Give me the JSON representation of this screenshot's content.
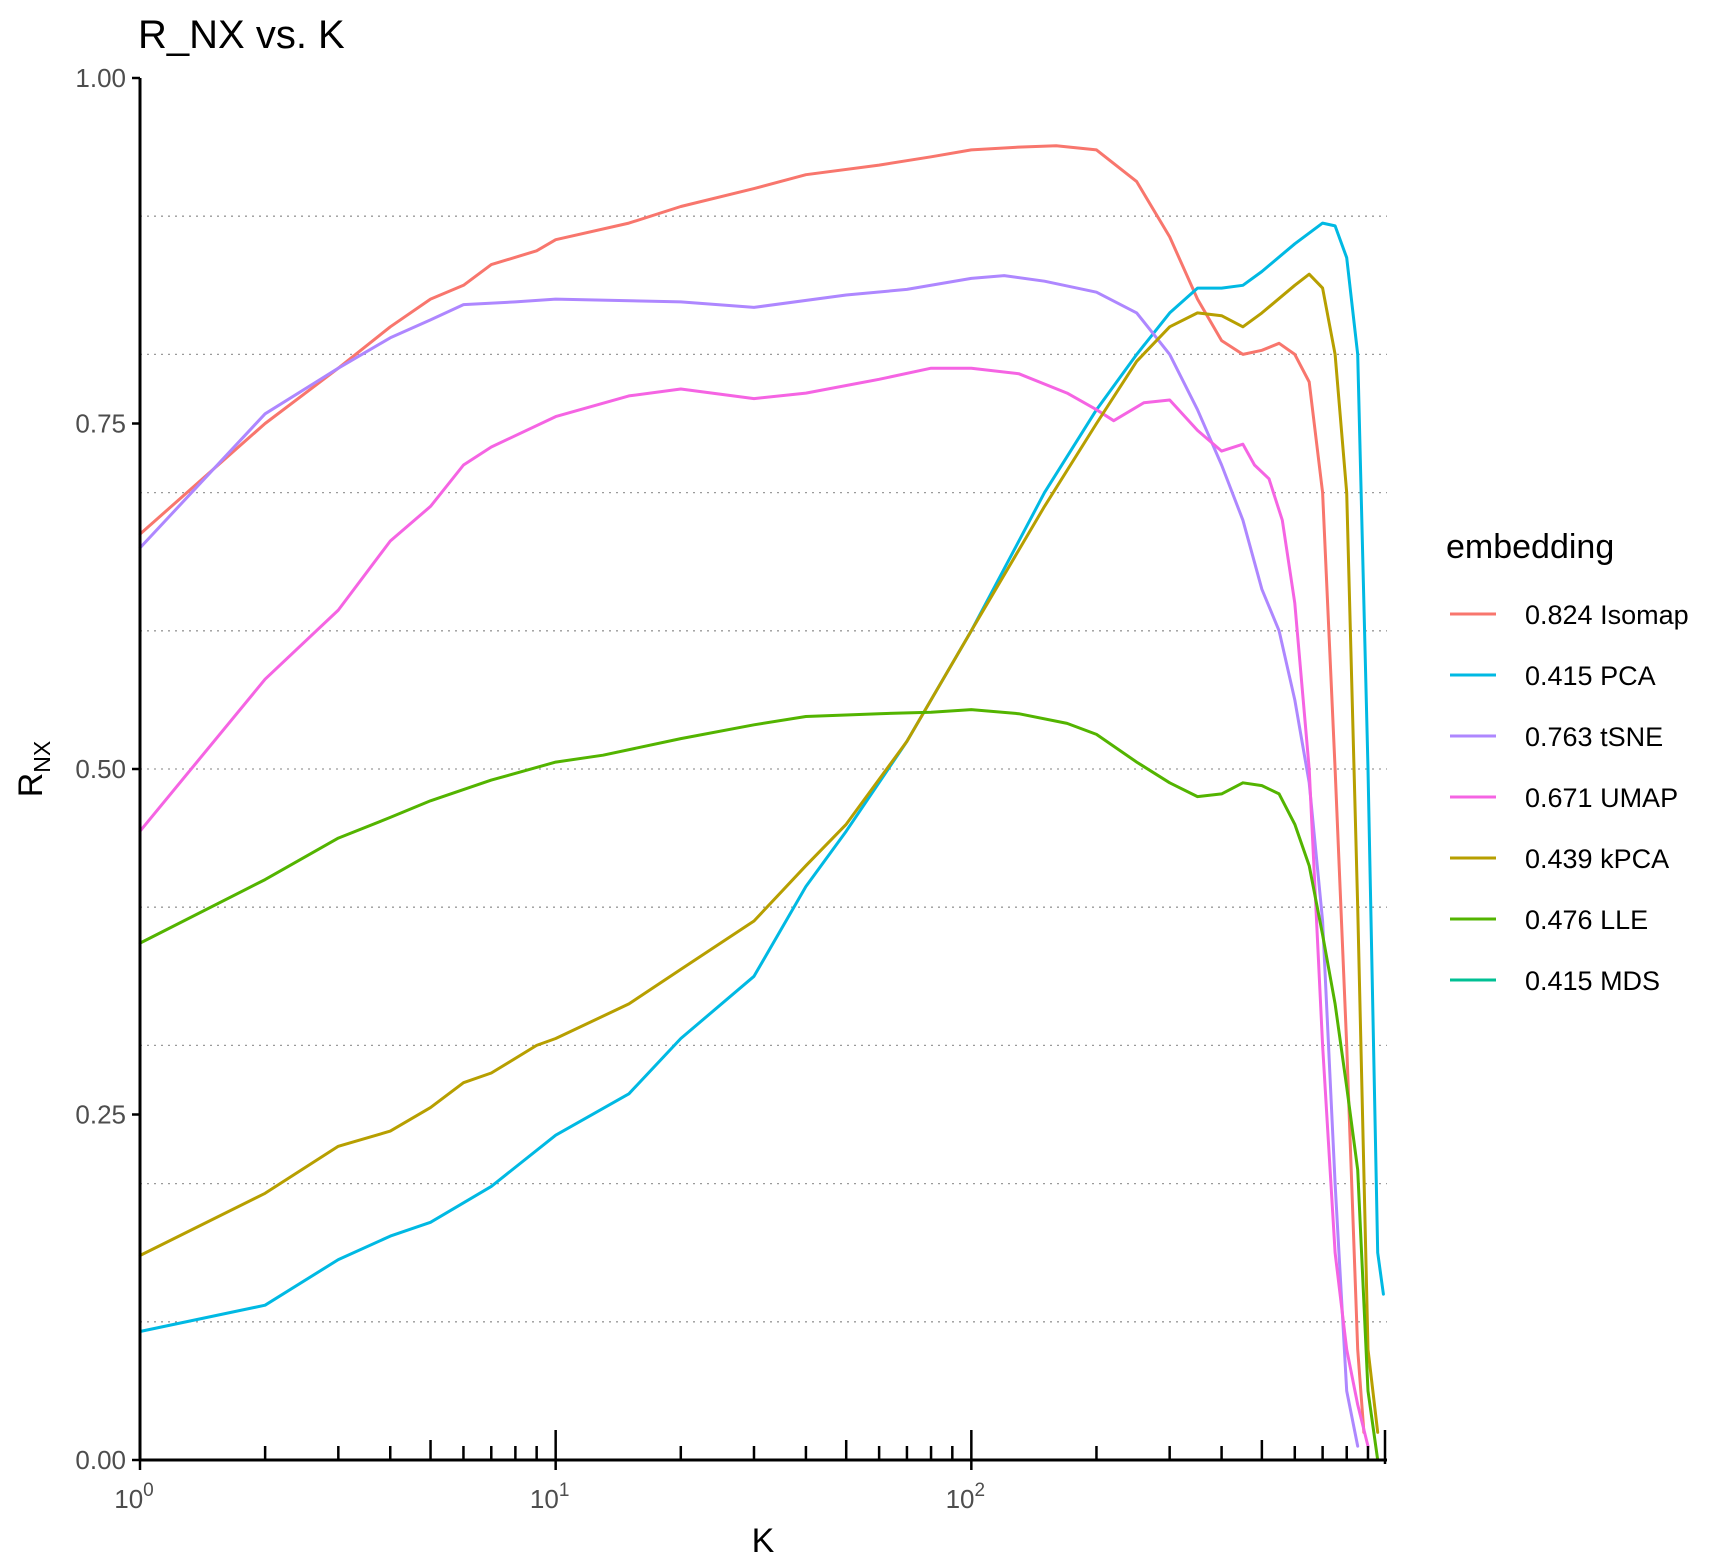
{
  "chart_data": {
    "type": "line",
    "title": "R_NX vs. K",
    "xlabel": "K",
    "ylabel": "R",
    "ylabel_subscript": "NX",
    "x_scale": "log10",
    "xlim": [
      1,
      1000
    ],
    "ylim": [
      0,
      1
    ],
    "y_ticks": [
      "0.00",
      "0.25",
      "0.50",
      "0.75",
      "1.00"
    ],
    "y_tick_values": [
      0,
      0.25,
      0.5,
      0.75,
      1.0
    ],
    "y_minor_grid": [
      0.1,
      0.2,
      0.3,
      0.4,
      0.5,
      0.6,
      0.7,
      0.8,
      0.9
    ],
    "x_ticks": [
      {
        "value": 1,
        "base": "10",
        "exp": "0"
      },
      {
        "value": 10,
        "base": "10",
        "exp": "1"
      },
      {
        "value": 100,
        "base": "10",
        "exp": "2"
      }
    ],
    "grid": "dotted horizontal",
    "legend_title": "embedding",
    "legend_position": "right",
    "series": [
      {
        "name": "0.824 Isomap",
        "color": "#F8766D",
        "points": [
          [
            1,
            0.67
          ],
          [
            2,
            0.75
          ],
          [
            3,
            0.79
          ],
          [
            4,
            0.82
          ],
          [
            5,
            0.84
          ],
          [
            6,
            0.85
          ],
          [
            7,
            0.865
          ],
          [
            9,
            0.875
          ],
          [
            10,
            0.883
          ],
          [
            15,
            0.895
          ],
          [
            20,
            0.907
          ],
          [
            30,
            0.92
          ],
          [
            40,
            0.93
          ],
          [
            60,
            0.937
          ],
          [
            80,
            0.943
          ],
          [
            100,
            0.948
          ],
          [
            130,
            0.95
          ],
          [
            160,
            0.951
          ],
          [
            200,
            0.948
          ],
          [
            250,
            0.925
          ],
          [
            300,
            0.885
          ],
          [
            350,
            0.84
          ],
          [
            400,
            0.81
          ],
          [
            450,
            0.8
          ],
          [
            500,
            0.803
          ],
          [
            550,
            0.808
          ],
          [
            600,
            0.8
          ],
          [
            650,
            0.78
          ],
          [
            700,
            0.7
          ],
          [
            750,
            0.5
          ],
          [
            800,
            0.3
          ],
          [
            850,
            0.08
          ],
          [
            880,
            0.02
          ]
        ]
      },
      {
        "name": "0.415 PCA",
        "color": "#00B9E3",
        "points": [
          [
            1,
            0.093
          ],
          [
            2,
            0.112
          ],
          [
            3,
            0.145
          ],
          [
            4,
            0.162
          ],
          [
            5,
            0.172
          ],
          [
            7,
            0.198
          ],
          [
            10,
            0.235
          ],
          [
            15,
            0.265
          ],
          [
            20,
            0.305
          ],
          [
            30,
            0.35
          ],
          [
            40,
            0.415
          ],
          [
            50,
            0.455
          ],
          [
            70,
            0.52
          ],
          [
            100,
            0.6
          ],
          [
            150,
            0.7
          ],
          [
            200,
            0.76
          ],
          [
            250,
            0.8
          ],
          [
            300,
            0.83
          ],
          [
            350,
            0.848
          ],
          [
            400,
            0.848
          ],
          [
            450,
            0.85
          ],
          [
            500,
            0.86
          ],
          [
            600,
            0.88
          ],
          [
            700,
            0.895
          ],
          [
            750,
            0.893
          ],
          [
            800,
            0.87
          ],
          [
            850,
            0.8
          ],
          [
            900,
            0.5
          ],
          [
            950,
            0.15
          ],
          [
            980,
            0.12
          ]
        ]
      },
      {
        "name": "0.763 tSNE",
        "color": "#AE87FF",
        "points": [
          [
            1,
            0.66
          ],
          [
            2,
            0.757
          ],
          [
            3,
            0.79
          ],
          [
            4,
            0.812
          ],
          [
            5,
            0.825
          ],
          [
            6,
            0.836
          ],
          [
            8,
            0.838
          ],
          [
            10,
            0.84
          ],
          [
            20,
            0.838
          ],
          [
            30,
            0.834
          ],
          [
            50,
            0.843
          ],
          [
            70,
            0.847
          ],
          [
            100,
            0.855
          ],
          [
            120,
            0.857
          ],
          [
            150,
            0.853
          ],
          [
            200,
            0.845
          ],
          [
            250,
            0.83
          ],
          [
            300,
            0.8
          ],
          [
            350,
            0.76
          ],
          [
            400,
            0.72
          ],
          [
            450,
            0.68
          ],
          [
            500,
            0.63
          ],
          [
            550,
            0.6
          ],
          [
            600,
            0.55
          ],
          [
            650,
            0.49
          ],
          [
            700,
            0.39
          ],
          [
            750,
            0.2
          ],
          [
            800,
            0.05
          ],
          [
            850,
            0.01
          ]
        ]
      },
      {
        "name": "0.671 UMAP",
        "color": "#F564E3",
        "points": [
          [
            1,
            0.455
          ],
          [
            2,
            0.565
          ],
          [
            3,
            0.615
          ],
          [
            4,
            0.665
          ],
          [
            5,
            0.69
          ],
          [
            6,
            0.72
          ],
          [
            7,
            0.733
          ],
          [
            10,
            0.755
          ],
          [
            15,
            0.77
          ],
          [
            20,
            0.775
          ],
          [
            30,
            0.768
          ],
          [
            40,
            0.772
          ],
          [
            60,
            0.782
          ],
          [
            80,
            0.79
          ],
          [
            100,
            0.79
          ],
          [
            130,
            0.786
          ],
          [
            170,
            0.772
          ],
          [
            200,
            0.76
          ],
          [
            220,
            0.752
          ],
          [
            260,
            0.765
          ],
          [
            300,
            0.767
          ],
          [
            350,
            0.745
          ],
          [
            400,
            0.73
          ],
          [
            450,
            0.735
          ],
          [
            480,
            0.72
          ],
          [
            520,
            0.71
          ],
          [
            560,
            0.68
          ],
          [
            600,
            0.62
          ],
          [
            650,
            0.5
          ],
          [
            700,
            0.3
          ],
          [
            750,
            0.15
          ],
          [
            800,
            0.08
          ],
          [
            850,
            0.04
          ],
          [
            900,
            0.01
          ]
        ]
      },
      {
        "name": "0.439 kPCA",
        "color": "#B79F00",
        "points": [
          [
            1,
            0.148
          ],
          [
            2,
            0.193
          ],
          [
            3,
            0.227
          ],
          [
            4,
            0.238
          ],
          [
            5,
            0.255
          ],
          [
            6,
            0.273
          ],
          [
            7,
            0.28
          ],
          [
            9,
            0.3
          ],
          [
            10,
            0.305
          ],
          [
            15,
            0.33
          ],
          [
            20,
            0.355
          ],
          [
            30,
            0.39
          ],
          [
            40,
            0.43
          ],
          [
            50,
            0.46
          ],
          [
            70,
            0.52
          ],
          [
            100,
            0.6
          ],
          [
            150,
            0.69
          ],
          [
            200,
            0.75
          ],
          [
            250,
            0.795
          ],
          [
            300,
            0.82
          ],
          [
            350,
            0.83
          ],
          [
            400,
            0.828
          ],
          [
            450,
            0.82
          ],
          [
            500,
            0.83
          ],
          [
            600,
            0.85
          ],
          [
            650,
            0.858
          ],
          [
            700,
            0.848
          ],
          [
            750,
            0.8
          ],
          [
            800,
            0.7
          ],
          [
            850,
            0.4
          ],
          [
            900,
            0.08
          ],
          [
            950,
            0.02
          ]
        ]
      },
      {
        "name": "0.476 LLE",
        "color": "#53B400",
        "points": [
          [
            1,
            0.374
          ],
          [
            2,
            0.42
          ],
          [
            3,
            0.45
          ],
          [
            4,
            0.465
          ],
          [
            5,
            0.477
          ],
          [
            7,
            0.492
          ],
          [
            10,
            0.505
          ],
          [
            13,
            0.51
          ],
          [
            20,
            0.522
          ],
          [
            30,
            0.532
          ],
          [
            40,
            0.538
          ],
          [
            60,
            0.54
          ],
          [
            80,
            0.541
          ],
          [
            100,
            0.543
          ],
          [
            130,
            0.54
          ],
          [
            170,
            0.533
          ],
          [
            200,
            0.525
          ],
          [
            250,
            0.505
          ],
          [
            300,
            0.49
          ],
          [
            350,
            0.48
          ],
          [
            400,
            0.482
          ],
          [
            450,
            0.49
          ],
          [
            500,
            0.488
          ],
          [
            550,
            0.482
          ],
          [
            600,
            0.46
          ],
          [
            650,
            0.43
          ],
          [
            700,
            0.38
          ],
          [
            750,
            0.33
          ],
          [
            800,
            0.27
          ],
          [
            850,
            0.21
          ],
          [
            900,
            0.05
          ],
          [
            950,
            0.0
          ]
        ]
      },
      {
        "name": "0.415 MDS",
        "color": "#00C094",
        "points": []
      }
    ]
  }
}
